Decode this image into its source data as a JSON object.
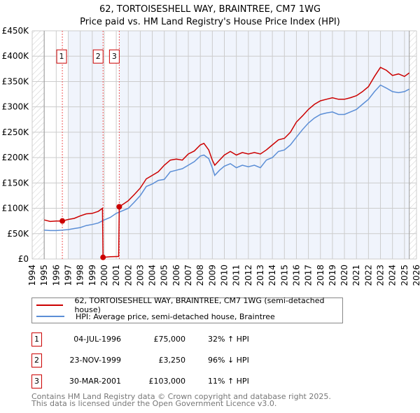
{
  "chart_data": {
    "type": "line",
    "title": "62, TORTOISESHELL WAY, BRAINTREE, CM7 1WG",
    "subtitle": "Price paid vs. HM Land Registry's House Price Index (HPI)",
    "xlim": [
      1994,
      2026
    ],
    "ylim": [
      0,
      450000
    ],
    "yticks": [
      {
        "v": 0,
        "label": "£0"
      },
      {
        "v": 50000,
        "label": "£50K"
      },
      {
        "v": 100000,
        "label": "£100K"
      },
      {
        "v": 150000,
        "label": "£150K"
      },
      {
        "v": 200000,
        "label": "£200K"
      },
      {
        "v": 250000,
        "label": "£250K"
      },
      {
        "v": 300000,
        "label": "£300K"
      },
      {
        "v": 350000,
        "label": "£350K"
      },
      {
        "v": 400000,
        "label": "£400K"
      },
      {
        "v": 450000,
        "label": "£450K"
      }
    ],
    "xticks": [
      "1994",
      "1995",
      "1996",
      "1997",
      "1998",
      "1999",
      "2000",
      "2001",
      "2002",
      "2003",
      "2004",
      "2005",
      "2006",
      "2007",
      "2008",
      "2009",
      "2010",
      "2011",
      "2012",
      "2013",
      "2014",
      "2015",
      "2016",
      "2017",
      "2018",
      "2019",
      "2020",
      "2021",
      "2022",
      "2023",
      "2024",
      "2025",
      "2026"
    ],
    "grid": true,
    "series": [
      {
        "name": "62, TORTOISESHELL WAY, BRAINTREE, CM7 1WG (semi-detached house)",
        "color": "#cc0000",
        "points": [
          [
            1995,
            77000
          ],
          [
            1995.5,
            74000
          ],
          [
            1996,
            75000
          ],
          [
            1996.51,
            75000
          ],
          [
            1997,
            78000
          ],
          [
            1997.5,
            80000
          ],
          [
            1998,
            85000
          ],
          [
            1998.5,
            89000
          ],
          [
            1999,
            90000
          ],
          [
            1999.5,
            94000
          ],
          [
            1999.85,
            100000
          ],
          [
            1999.9,
            3250
          ],
          [
            2000.5,
            4500
          ],
          [
            2001.2,
            5000
          ],
          [
            2001.25,
            103000
          ],
          [
            2001.7,
            110000
          ],
          [
            2002,
            115000
          ],
          [
            2002.5,
            127000
          ],
          [
            2003,
            140000
          ],
          [
            2003.5,
            158000
          ],
          [
            2004,
            165000
          ],
          [
            2004.5,
            172000
          ],
          [
            2005,
            185000
          ],
          [
            2005.5,
            195000
          ],
          [
            2006,
            197000
          ],
          [
            2006.5,
            195000
          ],
          [
            2007,
            207000
          ],
          [
            2007.5,
            213000
          ],
          [
            2008,
            225000
          ],
          [
            2008.3,
            228000
          ],
          [
            2008.7,
            215000
          ],
          [
            2009,
            195000
          ],
          [
            2009.2,
            185000
          ],
          [
            2009.6,
            195000
          ],
          [
            2010,
            205000
          ],
          [
            2010.5,
            212000
          ],
          [
            2011,
            205000
          ],
          [
            2011.5,
            210000
          ],
          [
            2012,
            207000
          ],
          [
            2012.5,
            210000
          ],
          [
            2013,
            207000
          ],
          [
            2013.5,
            215000
          ],
          [
            2014,
            225000
          ],
          [
            2014.5,
            235000
          ],
          [
            2015,
            238000
          ],
          [
            2015.5,
            250000
          ],
          [
            2016,
            270000
          ],
          [
            2016.5,
            282000
          ],
          [
            2017,
            295000
          ],
          [
            2017.5,
            305000
          ],
          [
            2018,
            312000
          ],
          [
            2018.5,
            315000
          ],
          [
            2019,
            318000
          ],
          [
            2019.5,
            315000
          ],
          [
            2020,
            315000
          ],
          [
            2020.5,
            318000
          ],
          [
            2021,
            322000
          ],
          [
            2021.5,
            330000
          ],
          [
            2022,
            340000
          ],
          [
            2022.5,
            360000
          ],
          [
            2023,
            378000
          ],
          [
            2023.5,
            372000
          ],
          [
            2024,
            362000
          ],
          [
            2024.5,
            365000
          ],
          [
            2025,
            360000
          ],
          [
            2025.4,
            367000
          ]
        ]
      },
      {
        "name": "HPI: Average price, semi-detached house, Braintree",
        "color": "#5b8ed6",
        "points": [
          [
            1995,
            57000
          ],
          [
            1995.5,
            56000
          ],
          [
            1996,
            56000
          ],
          [
            1996.5,
            57000
          ],
          [
            1997,
            58000
          ],
          [
            1997.5,
            60000
          ],
          [
            1998,
            62000
          ],
          [
            1998.5,
            66000
          ],
          [
            1999,
            68000
          ],
          [
            1999.5,
            71000
          ],
          [
            2000,
            77000
          ],
          [
            2000.5,
            82000
          ],
          [
            2001,
            90000
          ],
          [
            2001.5,
            95000
          ],
          [
            2002,
            100000
          ],
          [
            2002.5,
            112000
          ],
          [
            2003,
            125000
          ],
          [
            2003.5,
            143000
          ],
          [
            2004,
            148000
          ],
          [
            2004.5,
            155000
          ],
          [
            2005,
            157000
          ],
          [
            2005.5,
            172000
          ],
          [
            2006,
            175000
          ],
          [
            2006.5,
            178000
          ],
          [
            2007,
            185000
          ],
          [
            2007.5,
            192000
          ],
          [
            2008,
            203000
          ],
          [
            2008.3,
            205000
          ],
          [
            2008.7,
            198000
          ],
          [
            2009,
            180000
          ],
          [
            2009.2,
            165000
          ],
          [
            2009.6,
            175000
          ],
          [
            2010,
            183000
          ],
          [
            2010.5,
            188000
          ],
          [
            2011,
            180000
          ],
          [
            2011.5,
            185000
          ],
          [
            2012,
            182000
          ],
          [
            2012.5,
            185000
          ],
          [
            2013,
            180000
          ],
          [
            2013.5,
            195000
          ],
          [
            2014,
            200000
          ],
          [
            2014.5,
            212000
          ],
          [
            2015,
            215000
          ],
          [
            2015.5,
            225000
          ],
          [
            2016,
            240000
          ],
          [
            2016.5,
            255000
          ],
          [
            2017,
            268000
          ],
          [
            2017.5,
            278000
          ],
          [
            2018,
            285000
          ],
          [
            2018.5,
            288000
          ],
          [
            2019,
            290000
          ],
          [
            2019.5,
            285000
          ],
          [
            2020,
            285000
          ],
          [
            2020.5,
            290000
          ],
          [
            2021,
            295000
          ],
          [
            2021.5,
            305000
          ],
          [
            2022,
            315000
          ],
          [
            2022.5,
            330000
          ],
          [
            2023,
            343000
          ],
          [
            2023.5,
            337000
          ],
          [
            2024,
            330000
          ],
          [
            2024.5,
            328000
          ],
          [
            2025,
            330000
          ],
          [
            2025.4,
            335000
          ]
        ]
      }
    ],
    "transactions": [
      {
        "id": "1",
        "date": "04-JUL-1996",
        "x": 1996.51,
        "price": 75000,
        "price_label": "£75,000",
        "hpi": "32% ↑ HPI"
      },
      {
        "id": "2",
        "date": "23-NOV-1999",
        "x": 1999.9,
        "price": 3250,
        "price_label": "£3,250",
        "hpi": "96% ↓ HPI"
      },
      {
        "id": "3",
        "date": "30-MAR-2001",
        "x": 2001.25,
        "price": 103000,
        "price_label": "£103,000",
        "hpi": "11% ↑ HPI"
      }
    ],
    "data_range": [
      1995,
      2025.4
    ]
  },
  "footer": {
    "line1": "Contains HM Land Registry data © Crown copyright and database right 2025.",
    "line2": "This data is licensed under the Open Government Licence v3.0."
  }
}
